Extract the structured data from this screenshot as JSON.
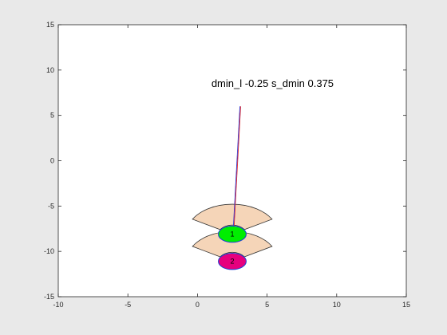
{
  "chart_data": {
    "type": "scatter",
    "title": "",
    "xlabel": "",
    "ylabel": "",
    "xlim": [
      -10,
      15
    ],
    "ylim": [
      -15,
      15
    ],
    "grid": false,
    "legend": "none",
    "xticks": [
      "-10",
      "-5",
      "0",
      "5",
      "10",
      "15"
    ],
    "yticks": [
      "15",
      "10",
      "5",
      "0",
      "-5",
      "-10",
      "-15"
    ],
    "xtick_values": [
      -10,
      -5,
      0,
      5,
      10,
      15
    ],
    "ytick_values": [
      15,
      10,
      5,
      0,
      -5,
      -10,
      -15
    ],
    "annotation": {
      "text": "dmin_l -0.25    s_dmin 0.375",
      "x": 1,
      "y": 8.5
    },
    "agents": [
      {
        "label": "1",
        "x": 2.5,
        "y": -8.1,
        "rx": 1.0,
        "ry": 0.9,
        "fill": "#00ee00",
        "edge": "#1a3fd4"
      },
      {
        "label": "2",
        "x": 2.5,
        "y": -11.1,
        "rx": 1.0,
        "ry": 0.9,
        "fill": "#e6007e",
        "edge": "#1a3fd4"
      }
    ],
    "sectors": [
      {
        "cx": 2.5,
        "cy": -8.1,
        "r_inner": 1.0,
        "r_outer": 3.3,
        "start_deg": 30,
        "end_deg": 150,
        "fill": "#f5d5b8",
        "edge": "#333333"
      },
      {
        "cx": 2.5,
        "cy": -11.1,
        "r_inner": 1.0,
        "r_outer": 3.3,
        "start_deg": 30,
        "end_deg": 150,
        "fill": "#f5d5b8",
        "edge": "#333333"
      }
    ],
    "series": [
      {
        "type": "line",
        "color": "#e02020",
        "points": [
          [
            2.6,
            -8.1
          ],
          [
            3.1,
            6.0
          ]
        ]
      },
      {
        "type": "line",
        "color": "#3a3ad0",
        "points": [
          [
            2.55,
            -8.1
          ],
          [
            3.05,
            6.0
          ]
        ]
      }
    ],
    "colors": {
      "background": "#e9e9e9",
      "axes_bg": "#ffffff",
      "axes_edge": "#262626"
    }
  }
}
